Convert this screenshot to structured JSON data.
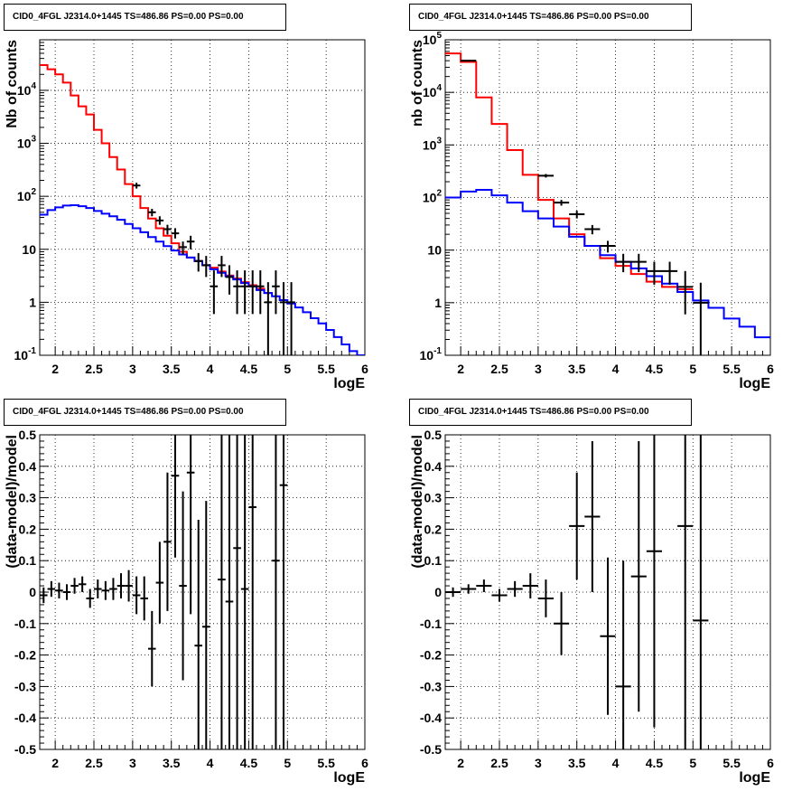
{
  "chart_data": [
    {
      "type": "histogram",
      "title": "CID0_4FGL J2314.0+1445 TS=486.86 PS=0.00 PS=0.00",
      "xlabel": "logE",
      "ylabel": "Nb of counts",
      "xlim": [
        1.8,
        6.0
      ],
      "ylim": [
        0.1,
        90000
      ],
      "yscale": "log",
      "grid": true,
      "x_ticks": [
        "2",
        "2.5",
        "3",
        "3.5",
        "4",
        "4.5",
        "5",
        "5.5",
        "6"
      ],
      "y_ticks": [
        "10^{-1}",
        "1",
        "10",
        "10^{2}",
        "10^{3}",
        "10^{4}"
      ],
      "bin_edges": [
        1.8,
        1.9,
        2.0,
        2.1,
        2.2,
        2.3,
        2.4,
        2.5,
        2.6,
        2.7,
        2.8,
        2.9,
        3.0,
        3.1,
        3.2,
        3.3,
        3.4,
        3.5,
        3.6,
        3.7,
        3.8,
        3.9,
        4.0,
        4.1,
        4.2,
        4.3,
        4.4,
        4.5,
        4.6,
        4.7,
        4.8,
        4.9,
        5.0,
        5.1,
        5.2,
        5.3,
        5.4,
        5.5,
        5.6,
        5.7,
        5.8,
        5.9,
        6.0
      ],
      "series": [
        {
          "color": "#ff0000",
          "values": [
            30000,
            25000,
            20000,
            14000,
            8000,
            5000,
            3500,
            1800,
            1000,
            550,
            320,
            170,
            100,
            60,
            38,
            25,
            18,
            13,
            9,
            7,
            6,
            5,
            4.5,
            3.8,
            3.2,
            2.8,
            2.4,
            2.1,
            1.8,
            1.5
          ]
        },
        {
          "color": "#0000ff",
          "values": [
            45,
            55,
            62,
            67,
            68,
            65,
            60,
            53,
            47,
            42,
            36,
            30,
            25,
            21,
            17,
            14,
            11.5,
            9.5,
            8,
            7,
            6,
            5,
            4.2,
            3.6,
            3.1,
            2.7,
            2.3,
            2,
            1.7,
            1.5,
            1.3,
            1.1,
            0.95,
            0.8,
            0.65,
            0.5,
            0.4,
            0.3,
            0.22,
            0.16,
            0.12,
            0.1
          ]
        }
      ],
      "points": [
        {
          "x": 3.05,
          "y": 160,
          "lo": 140,
          "hi": 180
        },
        {
          "x": 3.25,
          "y": 50,
          "lo": 42,
          "hi": 58
        },
        {
          "x": 3.35,
          "y": 35,
          "lo": 29,
          "hi": 42
        },
        {
          "x": 3.45,
          "y": 24,
          "lo": 19,
          "hi": 29
        },
        {
          "x": 3.55,
          "y": 20,
          "lo": 16,
          "hi": 25
        },
        {
          "x": 3.65,
          "y": 11,
          "lo": 8,
          "hi": 14
        },
        {
          "x": 3.75,
          "y": 14,
          "lo": 10,
          "hi": 18
        },
        {
          "x": 3.85,
          "y": 6,
          "lo": 3.8,
          "hi": 8.5
        },
        {
          "x": 3.95,
          "y": 5,
          "lo": 3,
          "hi": 7.5
        },
        {
          "x": 4.05,
          "y": 2,
          "lo": 0.6,
          "hi": 4
        },
        {
          "x": 4.15,
          "y": 5,
          "lo": 3,
          "hi": 7.5
        },
        {
          "x": 4.25,
          "y": 3,
          "lo": 1.4,
          "hi": 5
        },
        {
          "x": 4.35,
          "y": 2,
          "lo": 0.6,
          "hi": 4
        },
        {
          "x": 4.45,
          "y": 2,
          "lo": 0.6,
          "hi": 4
        },
        {
          "x": 4.55,
          "y": 2,
          "lo": 0.6,
          "hi": 4
        },
        {
          "x": 4.65,
          "y": 2,
          "lo": 0.6,
          "hi": 4
        },
        {
          "x": 4.75,
          "y": 1,
          "lo": 0.1,
          "hi": 2.4
        },
        {
          "x": 4.85,
          "y": 2,
          "lo": 0.6,
          "hi": 4
        },
        {
          "x": 4.95,
          "y": 1,
          "lo": 0.1,
          "hi": 2.4
        },
        {
          "x": 5.05,
          "y": 1,
          "lo": 0.1,
          "hi": 2.4
        }
      ]
    },
    {
      "type": "histogram",
      "title": "CID0_4FGL J2314.0+1445 TS=486.86 PS=0.00 PS=0.00",
      "xlabel": "logE",
      "ylabel": "nb of counts",
      "xlim": [
        1.8,
        6.0
      ],
      "ylim": [
        0.1,
        100000
      ],
      "yscale": "log",
      "grid": true,
      "x_ticks": [
        "2",
        "2.5",
        "3",
        "3.5",
        "4",
        "4.5",
        "5",
        "5.5",
        "6"
      ],
      "y_ticks": [
        "10^{-1}",
        "1",
        "10",
        "10^{2}",
        "10^{3}",
        "10^{4}",
        "10^{5}"
      ],
      "bin_edges": [
        1.8,
        2.0,
        2.2,
        2.4,
        2.6,
        2.8,
        3.0,
        3.2,
        3.4,
        3.6,
        3.8,
        4.0,
        4.2,
        4.4,
        4.6,
        4.8,
        5.0,
        5.2,
        5.4,
        5.6,
        5.8,
        6.0
      ],
      "series": [
        {
          "color": "#ff0000",
          "values": [
            55000,
            38000,
            8000,
            2500,
            800,
            270,
            90,
            40,
            20,
            12,
            7,
            5,
            3.5,
            2.5,
            2,
            1.8
          ]
        },
        {
          "color": "#0000ff",
          "values": [
            100,
            130,
            140,
            110,
            80,
            55,
            40,
            28,
            18,
            12,
            8,
            6,
            4.5,
            3.2,
            2.3,
            1.6,
            1.1,
            0.8,
            0.5,
            0.35,
            0.22
          ]
        }
      ],
      "points": [
        {
          "x": 2.1,
          "y": 40000,
          "lo": 39000,
          "hi": 41000
        },
        {
          "x": 3.1,
          "y": 260,
          "lo": 240,
          "hi": 280
        },
        {
          "x": 3.3,
          "y": 80,
          "lo": 70,
          "hi": 90
        },
        {
          "x": 3.5,
          "y": 48,
          "lo": 40,
          "hi": 56
        },
        {
          "x": 3.7,
          "y": 25,
          "lo": 20,
          "hi": 30
        },
        {
          "x": 3.9,
          "y": 12,
          "lo": 9,
          "hi": 15
        },
        {
          "x": 4.1,
          "y": 6,
          "lo": 3.8,
          "hi": 8.5
        },
        {
          "x": 4.3,
          "y": 6,
          "lo": 3.8,
          "hi": 8.5
        },
        {
          "x": 4.5,
          "y": 4,
          "lo": 2.2,
          "hi": 6
        },
        {
          "x": 4.7,
          "y": 4,
          "lo": 2.2,
          "hi": 6
        },
        {
          "x": 4.9,
          "y": 2,
          "lo": 0.6,
          "hi": 4
        },
        {
          "x": 5.1,
          "y": 1,
          "lo": 0.1,
          "hi": 2.4
        }
      ]
    },
    {
      "type": "scatter",
      "title": "CID0_4FGL J2314.0+1445 TS=486.86 PS=0.00 PS=0.00",
      "xlabel": "logE",
      "ylabel": "(data-model)/model",
      "xlim": [
        1.8,
        6.0
      ],
      "ylim": [
        -0.5,
        0.5
      ],
      "grid": true,
      "x_ticks": [
        "2",
        "2.5",
        "3",
        "3.5",
        "4",
        "4.5",
        "5",
        "5.5",
        "6"
      ],
      "y_ticks": [
        "-0.5",
        "-0.4",
        "-0.3",
        "-0.2",
        "-0.1",
        "0",
        "0.1",
        "0.2",
        "0.3",
        "0.4",
        "0.5"
      ],
      "xhalf": 0.05,
      "points": [
        {
          "x": 1.85,
          "y": -0.01,
          "err": 0.025
        },
        {
          "x": 1.95,
          "y": 0.01,
          "err": 0.025
        },
        {
          "x": 2.05,
          "y": 0.005,
          "err": 0.025
        },
        {
          "x": 2.15,
          "y": 0.0,
          "err": 0.025
        },
        {
          "x": 2.25,
          "y": 0.02,
          "err": 0.025
        },
        {
          "x": 2.35,
          "y": 0.025,
          "err": 0.025
        },
        {
          "x": 2.45,
          "y": -0.02,
          "err": 0.03
        },
        {
          "x": 2.55,
          "y": 0.01,
          "err": 0.03
        },
        {
          "x": 2.65,
          "y": 0.005,
          "err": 0.03
        },
        {
          "x": 2.75,
          "y": 0.01,
          "err": 0.035
        },
        {
          "x": 2.85,
          "y": 0.02,
          "err": 0.04
        },
        {
          "x": 2.95,
          "y": 0.02,
          "err": 0.05
        },
        {
          "x": 3.05,
          "y": -0.01,
          "err": 0.06
        },
        {
          "x": 3.15,
          "y": -0.02,
          "err": 0.07
        },
        {
          "x": 3.25,
          "y": -0.18,
          "err": 0.12
        },
        {
          "x": 3.35,
          "y": 0.03,
          "err": 0.13
        },
        {
          "x": 3.45,
          "y": 0.16,
          "err": 0.22
        },
        {
          "x": 3.55,
          "y": 0.37,
          "err": 0.26
        },
        {
          "x": 3.65,
          "y": 0.02,
          "err": 0.3
        },
        {
          "x": 3.75,
          "y": 0.38,
          "err": 0.45
        },
        {
          "x": 3.85,
          "y": -0.17,
          "err": 0.4
        },
        {
          "x": 3.95,
          "y": -0.11,
          "err": 0.4
        },
        {
          "x": 4.15,
          "y": 0.04,
          "err": 0.6
        },
        {
          "x": 4.25,
          "y": -0.03,
          "err": 0.6
        },
        {
          "x": 4.35,
          "y": 0.14,
          "err": 0.8
        },
        {
          "x": 4.45,
          "y": 0.01,
          "err": 0.8
        },
        {
          "x": 4.55,
          "y": 0.27,
          "err": 0.9
        },
        {
          "x": 4.85,
          "y": 0.1,
          "err": 1.0
        },
        {
          "x": 4.95,
          "y": 0.34,
          "err": 1.2
        }
      ]
    },
    {
      "type": "scatter",
      "title": "CID0_4FGL J2314.0+1445 TS=486.86 PS=0.00 PS=0.00",
      "xlabel": "logE",
      "ylabel": "(data-model)/model",
      "xlim": [
        1.8,
        6.0
      ],
      "ylim": [
        -0.5,
        0.5
      ],
      "grid": true,
      "x_ticks": [
        "2",
        "2.5",
        "3",
        "3.5",
        "4",
        "4.5",
        "5",
        "5.5",
        "6"
      ],
      "y_ticks": [
        "-0.5",
        "-0.4",
        "-0.3",
        "-0.2",
        "-0.1",
        "0",
        "0.1",
        "0.2",
        "0.3",
        "0.4",
        "0.5"
      ],
      "xhalf": 0.1,
      "points": [
        {
          "x": 1.9,
          "y": 0.0,
          "err": 0.015
        },
        {
          "x": 2.1,
          "y": 0.01,
          "err": 0.015
        },
        {
          "x": 2.3,
          "y": 0.02,
          "err": 0.02
        },
        {
          "x": 2.5,
          "y": -0.01,
          "err": 0.02
        },
        {
          "x": 2.7,
          "y": 0.01,
          "err": 0.025
        },
        {
          "x": 2.9,
          "y": 0.02,
          "err": 0.04
        },
        {
          "x": 3.1,
          "y": -0.02,
          "err": 0.06
        },
        {
          "x": 3.3,
          "y": -0.1,
          "err": 0.1
        },
        {
          "x": 3.5,
          "y": 0.21,
          "err": 0.17
        },
        {
          "x": 3.7,
          "y": 0.24,
          "err": 0.24
        },
        {
          "x": 3.9,
          "y": -0.14,
          "err": 0.25
        },
        {
          "x": 4.1,
          "y": -0.3,
          "err": 0.4
        },
        {
          "x": 4.3,
          "y": 0.05,
          "err": 0.43
        },
        {
          "x": 4.5,
          "y": 0.13,
          "err": 0.56
        },
        {
          "x": 4.9,
          "y": 0.21,
          "err": 0.8
        },
        {
          "x": 5.1,
          "y": -0.09,
          "err": 1.0
        }
      ]
    }
  ]
}
